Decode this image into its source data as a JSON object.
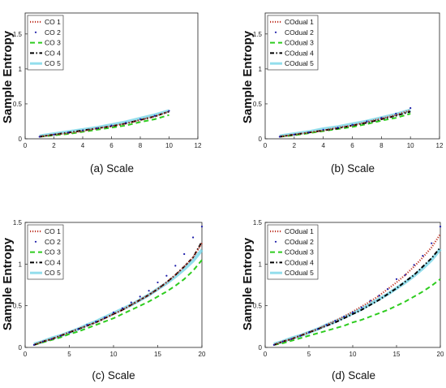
{
  "colors": {
    "series": [
      "#c0392b",
      "#1a1aa8",
      "#2ecc1f",
      "#000000",
      "#6fd3e6"
    ],
    "axes": "#222222"
  },
  "chart_data": [
    {
      "type": "line",
      "caption": "(a) Scale",
      "ylabel": "Sample Entropy",
      "xlim": [
        0,
        12
      ],
      "ylim": [
        0,
        1.8
      ],
      "xticks": [
        0,
        2,
        4,
        6,
        8,
        10,
        12
      ],
      "yticks": [
        0,
        0.5,
        1,
        1.5
      ],
      "legend_position": "top-left",
      "x": [
        1,
        2,
        3,
        4,
        5,
        6,
        7,
        8,
        9,
        10
      ],
      "series": [
        {
          "name": "CO 1",
          "style": "dotted",
          "values": [
            0.03,
            0.06,
            0.08,
            0.11,
            0.15,
            0.18,
            0.22,
            0.27,
            0.32,
            0.39
          ]
        },
        {
          "name": "CO 2",
          "style": "points",
          "values": [
            0.03,
            0.06,
            0.09,
            0.12,
            0.15,
            0.19,
            0.23,
            0.28,
            0.33,
            0.4
          ]
        },
        {
          "name": "CO 3",
          "style": "dashed",
          "values": [
            0.03,
            0.05,
            0.07,
            0.1,
            0.13,
            0.16,
            0.19,
            0.24,
            0.28,
            0.34
          ]
        },
        {
          "name": "CO 4",
          "style": "dashdot",
          "values": [
            0.03,
            0.06,
            0.09,
            0.12,
            0.15,
            0.18,
            0.22,
            0.27,
            0.32,
            0.39
          ]
        },
        {
          "name": "CO 5",
          "style": "solid",
          "values": [
            0.04,
            0.07,
            0.1,
            0.13,
            0.16,
            0.2,
            0.24,
            0.29,
            0.34,
            0.4
          ]
        }
      ]
    },
    {
      "type": "line",
      "caption": "(b) Scale",
      "ylabel": "Sample Entropy",
      "xlim": [
        0,
        12
      ],
      "ylim": [
        0,
        1.8
      ],
      "xticks": [
        0,
        2,
        4,
        6,
        8,
        10,
        12
      ],
      "yticks": [
        0,
        0.5,
        1,
        1.5
      ],
      "legend_position": "top-left",
      "x": [
        1,
        2,
        3,
        4,
        5,
        6,
        7,
        8,
        9,
        10
      ],
      "series": [
        {
          "name": "COdual 1",
          "style": "dotted",
          "values": [
            0.03,
            0.06,
            0.09,
            0.12,
            0.16,
            0.19,
            0.24,
            0.29,
            0.34,
            0.41
          ]
        },
        {
          "name": "COdual 2",
          "style": "points",
          "values": [
            0.03,
            0.06,
            0.09,
            0.13,
            0.16,
            0.2,
            0.25,
            0.3,
            0.36,
            0.44
          ]
        },
        {
          "name": "COdual 3",
          "style": "dashed",
          "values": [
            0.03,
            0.05,
            0.08,
            0.11,
            0.14,
            0.17,
            0.21,
            0.26,
            0.3,
            0.36
          ]
        },
        {
          "name": "COdual 4",
          "style": "dashdot",
          "values": [
            0.03,
            0.06,
            0.09,
            0.12,
            0.15,
            0.19,
            0.23,
            0.28,
            0.33,
            0.39
          ]
        },
        {
          "name": "COdual 5",
          "style": "solid",
          "values": [
            0.04,
            0.07,
            0.1,
            0.14,
            0.17,
            0.21,
            0.25,
            0.3,
            0.35,
            0.41
          ]
        }
      ]
    },
    {
      "type": "line",
      "caption": "(c) Scale",
      "ylabel": "Sample Entropy",
      "xlim": [
        0,
        20
      ],
      "ylim": [
        0,
        1.5
      ],
      "xticks": [
        0,
        5,
        10,
        15,
        20
      ],
      "yticks": [
        0,
        0.5,
        1,
        1.5
      ],
      "legend_position": "top-left",
      "x": [
        1,
        2,
        3,
        4,
        5,
        6,
        7,
        8,
        9,
        10,
        11,
        12,
        13,
        14,
        15,
        16,
        17,
        18,
        19,
        20
      ],
      "series": [
        {
          "name": "CO 1",
          "style": "dotted",
          "values": [
            0.03,
            0.07,
            0.1,
            0.14,
            0.18,
            0.22,
            0.26,
            0.3,
            0.35,
            0.4,
            0.45,
            0.51,
            0.57,
            0.63,
            0.7,
            0.78,
            0.87,
            0.97,
            1.08,
            1.25
          ]
        },
        {
          "name": "CO 2",
          "style": "points",
          "values": [
            0.03,
            0.07,
            0.1,
            0.14,
            0.18,
            0.22,
            0.27,
            0.31,
            0.36,
            0.42,
            0.47,
            0.54,
            0.61,
            0.68,
            0.78,
            0.86,
            0.98,
            1.12,
            1.32,
            1.45
          ]
        },
        {
          "name": "CO 3",
          "style": "dashed",
          "values": [
            0.03,
            0.06,
            0.09,
            0.12,
            0.16,
            0.19,
            0.23,
            0.27,
            0.31,
            0.35,
            0.4,
            0.45,
            0.5,
            0.55,
            0.61,
            0.67,
            0.74,
            0.82,
            0.92,
            1.05
          ]
        },
        {
          "name": "CO 4",
          "style": "dashdot",
          "values": [
            0.03,
            0.07,
            0.1,
            0.14,
            0.18,
            0.22,
            0.26,
            0.3,
            0.35,
            0.4,
            0.45,
            0.51,
            0.57,
            0.63,
            0.7,
            0.78,
            0.87,
            0.97,
            1.08,
            1.27
          ]
        },
        {
          "name": "CO 5",
          "style": "solid",
          "values": [
            0.04,
            0.07,
            0.11,
            0.14,
            0.18,
            0.22,
            0.27,
            0.31,
            0.36,
            0.41,
            0.46,
            0.51,
            0.57,
            0.63,
            0.7,
            0.77,
            0.85,
            0.94,
            1.04,
            1.17
          ]
        }
      ]
    },
    {
      "type": "line",
      "caption": "(d) Scale",
      "ylabel": "Sample Entropy",
      "xlim": [
        0,
        20
      ],
      "ylim": [
        0,
        1.5
      ],
      "xticks": [
        0,
        5,
        10,
        15,
        20
      ],
      "yticks": [
        0,
        0.5,
        1,
        1.5
      ],
      "legend_position": "top-left",
      "x": [
        1,
        2,
        3,
        4,
        5,
        6,
        7,
        8,
        9,
        10,
        11,
        12,
        13,
        14,
        15,
        16,
        17,
        18,
        19,
        20
      ],
      "series": [
        {
          "name": "COdual 1",
          "style": "dotted",
          "values": [
            0.03,
            0.07,
            0.1,
            0.14,
            0.18,
            0.22,
            0.27,
            0.32,
            0.37,
            0.43,
            0.49,
            0.55,
            0.62,
            0.7,
            0.78,
            0.87,
            0.97,
            1.08,
            1.2,
            1.36
          ]
        },
        {
          "name": "COdual 2",
          "style": "points",
          "values": [
            0.03,
            0.07,
            0.1,
            0.14,
            0.18,
            0.22,
            0.27,
            0.32,
            0.37,
            0.42,
            0.48,
            0.56,
            0.62,
            0.7,
            0.82,
            0.87,
            0.99,
            1.1,
            1.25,
            1.45
          ]
        },
        {
          "name": "COdual 3",
          "style": "dashed",
          "values": [
            0.03,
            0.05,
            0.08,
            0.11,
            0.14,
            0.17,
            0.2,
            0.23,
            0.26,
            0.3,
            0.33,
            0.37,
            0.41,
            0.45,
            0.5,
            0.55,
            0.61,
            0.67,
            0.74,
            0.82
          ]
        },
        {
          "name": "COdual 4",
          "style": "dashdot",
          "values": [
            0.03,
            0.07,
            0.1,
            0.14,
            0.18,
            0.22,
            0.26,
            0.3,
            0.35,
            0.4,
            0.45,
            0.51,
            0.57,
            0.64,
            0.71,
            0.79,
            0.87,
            0.97,
            1.07,
            1.2
          ]
        },
        {
          "name": "COdual 5",
          "style": "solid",
          "values": [
            0.04,
            0.07,
            0.11,
            0.14,
            0.18,
            0.22,
            0.27,
            0.31,
            0.36,
            0.41,
            0.46,
            0.52,
            0.58,
            0.64,
            0.71,
            0.78,
            0.86,
            0.95,
            1.05,
            1.18
          ]
        }
      ]
    }
  ]
}
